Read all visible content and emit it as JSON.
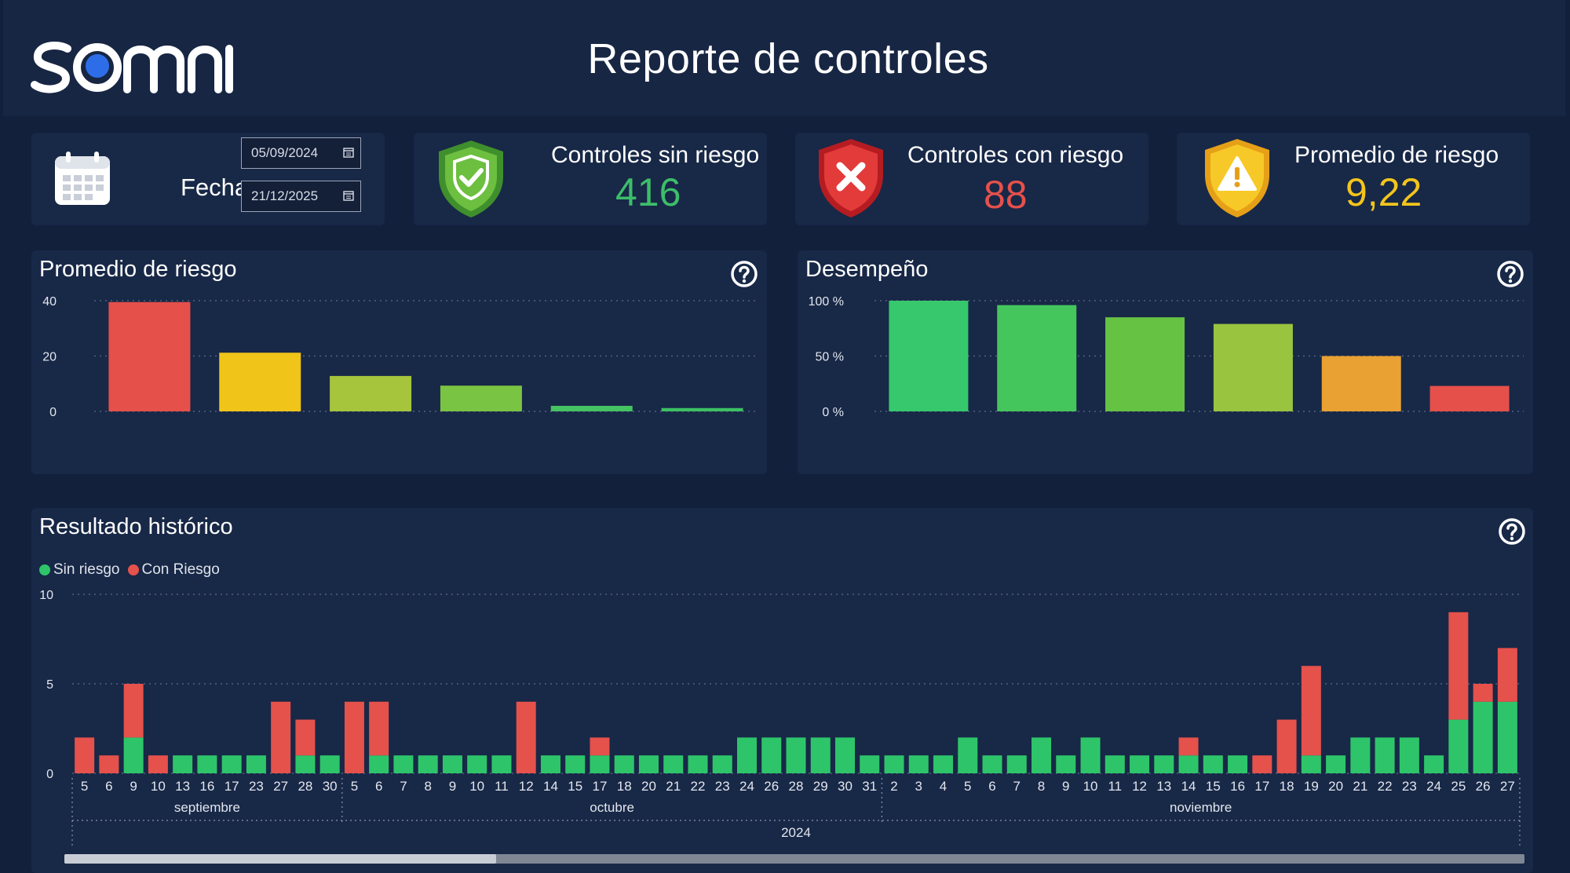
{
  "header": {
    "brand": "somni",
    "title": "Reporte de controles"
  },
  "filters": {
    "date_label": "Fecha",
    "start_date": "05/09/2024",
    "end_date": "21/12/2025"
  },
  "kpis": [
    {
      "label": "Controles sin riesgo",
      "value": "416",
      "color": "#3dbd6a",
      "icon": "shield-check-icon"
    },
    {
      "label": "Controles con riesgo",
      "value": "88",
      "color": "#e5514b",
      "icon": "shield-x-icon"
    },
    {
      "label": "Promedio de riesgo",
      "value": "9,22",
      "color": "#f3c51c",
      "icon": "shield-warning-icon"
    }
  ],
  "panels": {
    "risk_title": "Promedio de riesgo",
    "performance_title": "Desempeño",
    "history_title": "Resultado histórico"
  },
  "history_legend": [
    {
      "label": "Sin riesgo",
      "color": "#2ec56a"
    },
    {
      "label": "Con Riesgo",
      "color": "#e5514b"
    }
  ],
  "chart_data": [
    {
      "type": "bar",
      "title": "Promedio de riesgo",
      "y_ticks": [
        "40",
        "20",
        "0"
      ],
      "ylim": [
        0,
        40
      ],
      "values": [
        39.5,
        21.2,
        12.8,
        9.3,
        2.0,
        1.2
      ],
      "colors": [
        "#e5504a",
        "#f0c419",
        "#a6c43c",
        "#7ac443",
        "#45c261",
        "#3cc063"
      ],
      "grid": true
    },
    {
      "type": "bar",
      "title": "Desempeño",
      "y_ticks": [
        "100 %",
        "50 %",
        "0 %"
      ],
      "ylim": [
        0,
        100
      ],
      "values": [
        100,
        96,
        85,
        79,
        50,
        23
      ],
      "colors": [
        "#37c86d",
        "#45c65d",
        "#66c243",
        "#99c43f",
        "#e8a132",
        "#e5504a"
      ],
      "grid": true
    },
    {
      "type": "bar",
      "stacked": true,
      "title": "Resultado histórico",
      "y_ticks": [
        "10",
        "5",
        "0"
      ],
      "ylim": [
        0,
        10
      ],
      "grid": true,
      "legend": "top-left",
      "year_label": "2024",
      "months": [
        {
          "label": "septiembre",
          "days": [
            "5",
            "6",
            "9",
            "10",
            "13",
            "16",
            "17",
            "23",
            "27",
            "28",
            "30"
          ]
        },
        {
          "label": "octubre",
          "days": [
            "5",
            "6",
            "7",
            "8",
            "9",
            "10",
            "11",
            "12",
            "14",
            "15",
            "17",
            "18",
            "20",
            "21",
            "22",
            "23",
            "24",
            "26",
            "28",
            "29",
            "30",
            "31"
          ]
        },
        {
          "label": "noviembre",
          "days": [
            "2",
            "3",
            "4",
            "5",
            "6",
            "7",
            "8",
            "9",
            "10",
            "11",
            "12",
            "13",
            "14",
            "15",
            "16",
            "17",
            "18",
            "19",
            "20",
            "21",
            "22",
            "23",
            "24",
            "25",
            "26",
            "27"
          ]
        }
      ],
      "series": [
        {
          "name": "Sin riesgo",
          "color": "#2ec56a",
          "values": [
            0,
            0,
            2,
            0,
            1,
            1,
            1,
            1,
            0,
            1,
            1,
            0,
            1,
            1,
            1,
            1,
            1,
            1,
            0,
            1,
            1,
            1,
            1,
            1,
            1,
            1,
            1,
            2,
            2,
            2,
            2,
            2,
            1,
            1,
            1,
            1,
            2,
            1,
            1,
            2,
            1,
            2,
            1,
            1,
            1,
            1,
            1,
            1,
            0,
            0,
            1,
            1,
            2,
            2,
            2,
            1,
            3,
            4,
            4
          ]
        },
        {
          "name": "Con Riesgo",
          "color": "#e5514b",
          "values": [
            2,
            1,
            3,
            1,
            0,
            0,
            0,
            0,
            4,
            2,
            0,
            4,
            3,
            0,
            0,
            0,
            0,
            0,
            4,
            0,
            0,
            1,
            0,
            0,
            0,
            0,
            0,
            0,
            0,
            0,
            0,
            0,
            0,
            0,
            0,
            0,
            0,
            0,
            0,
            0,
            0,
            0,
            0,
            0,
            0,
            1,
            0,
            0,
            1,
            3,
            5,
            0,
            0,
            0,
            0,
            0,
            6,
            1,
            3
          ]
        }
      ]
    }
  ]
}
